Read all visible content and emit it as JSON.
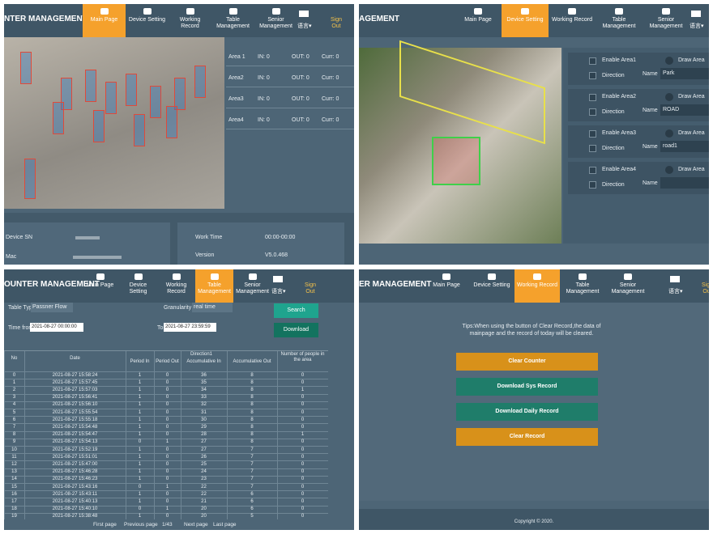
{
  "nav": {
    "tabs": [
      "Main Page",
      "Device Setting",
      "Working Record",
      "Table Management",
      "Senior Management"
    ],
    "language": "语言▾",
    "sign_out": "Sign Out"
  },
  "panels": [
    {
      "brand": "NTER MANAGEMENT",
      "active": 0,
      "areas": [
        [
          "Area 1",
          "IN: 0",
          "OUT: 0",
          "Curr: 0"
        ],
        [
          "Area2",
          "IN: 0",
          "OUT: 0",
          "Curr: 0"
        ],
        [
          "Area3",
          "IN: 0",
          "OUT: 0",
          "Curr: 0"
        ],
        [
          "Area4",
          "IN: 0",
          "OUT: 0",
          "Curr: 0"
        ]
      ],
      "device_info": [
        "Device SN",
        "Mac"
      ],
      "system_info": [
        [
          "Work Time",
          "00:00-00:00"
        ],
        [
          "Version",
          "V5.0.468"
        ]
      ]
    },
    {
      "brand": "AGEMENT",
      "active": 1,
      "areas": [
        {
          "enable": "Enable Area1",
          "draw": "Draw Area",
          "direction": "Direction",
          "name_label": "Name",
          "name": "Park"
        },
        {
          "enable": "Enable Area2",
          "draw": "Draw Area",
          "direction": "Direction",
          "name_label": "Name",
          "name": "ROAD"
        },
        {
          "enable": "Enable Area3",
          "draw": "Draw Area",
          "direction": "Direction",
          "name_label": "Name",
          "name": "road1"
        },
        {
          "enable": "Enable Area4",
          "draw": "Draw Area",
          "direction": "Direction",
          "name_label": "Name"
        }
      ]
    },
    {
      "brand": "OUNTER MANAGEMENT",
      "active": 3,
      "table_type": {
        "label": "Table Type",
        "value": "Passner Flow"
      },
      "granularity": {
        "label": "Granularity",
        "value": "real time"
      },
      "search": "Search",
      "download": "Download",
      "time_from": {
        "label": "Time from",
        "value": "2021-08-27 00:00:00"
      },
      "time_to": {
        "label": "To",
        "value": "2021-08-27 23:59:59"
      },
      "table": {
        "group_header": "Direction1",
        "headers": [
          "No",
          "Date",
          "Period In",
          "Period Out",
          "Accumulative In",
          "Accumulative Out",
          "Number of people in the area"
        ],
        "rows": [
          [
            0,
            "2021-08-27 15:58:24",
            1,
            0,
            36,
            8,
            0
          ],
          [
            1,
            "2021-08-27 15:57:45",
            1,
            0,
            35,
            8,
            0
          ],
          [
            2,
            "2021-08-27 15:57:03",
            1,
            0,
            34,
            8,
            1
          ],
          [
            3,
            "2021-08-27 15:56:41",
            1,
            0,
            33,
            8,
            0
          ],
          [
            4,
            "2021-08-27 15:56:10",
            1,
            0,
            32,
            8,
            0
          ],
          [
            5,
            "2021-08-27 15:55:54",
            1,
            0,
            31,
            8,
            0
          ],
          [
            6,
            "2021-08-27 15:55:18",
            1,
            0,
            30,
            8,
            0
          ],
          [
            7,
            "2021-08-27 15:54:48",
            1,
            0,
            29,
            8,
            0
          ],
          [
            8,
            "2021-08-27 15:54:47",
            1,
            0,
            28,
            8,
            1
          ],
          [
            9,
            "2021-08-27 15:54:13",
            0,
            1,
            27,
            8,
            0
          ],
          [
            10,
            "2021-08-27 15:52:19",
            1,
            0,
            27,
            7,
            0
          ],
          [
            11,
            "2021-08-27 15:51:01",
            1,
            0,
            26,
            7,
            0
          ],
          [
            12,
            "2021-08-27 15:47:00",
            1,
            0,
            25,
            7,
            0
          ],
          [
            13,
            "2021-08-27 15:46:28",
            1,
            0,
            24,
            7,
            0
          ],
          [
            14,
            "2021-08-27 15:46:23",
            1,
            0,
            23,
            7,
            0
          ],
          [
            15,
            "2021-08-27 15:43:16",
            0,
            1,
            22,
            7,
            0
          ],
          [
            16,
            "2021-08-27 15:43:11",
            1,
            0,
            22,
            6,
            0
          ],
          [
            17,
            "2021-08-27 15:40:13",
            1,
            0,
            21,
            6,
            0
          ],
          [
            18,
            "2021-08-27 15:40:10",
            0,
            1,
            20,
            6,
            0
          ],
          [
            19,
            "2021-08-27 15:38:48",
            1,
            0,
            20,
            5,
            0
          ]
        ]
      },
      "pagination": [
        "First page",
        "Previous page",
        "1/43",
        "Next page",
        "Last page"
      ]
    },
    {
      "brand": "ER MANAGEMENT",
      "active": 2,
      "tips": "Tips:When using the button of Clear Record,the data of mainpage and the record of today will be cleared.",
      "buttons": [
        "Clear Counter",
        "Download Sys Record",
        "Download Daily Record",
        "Clear Record"
      ],
      "copyright": "Copyright © 2020."
    }
  ]
}
